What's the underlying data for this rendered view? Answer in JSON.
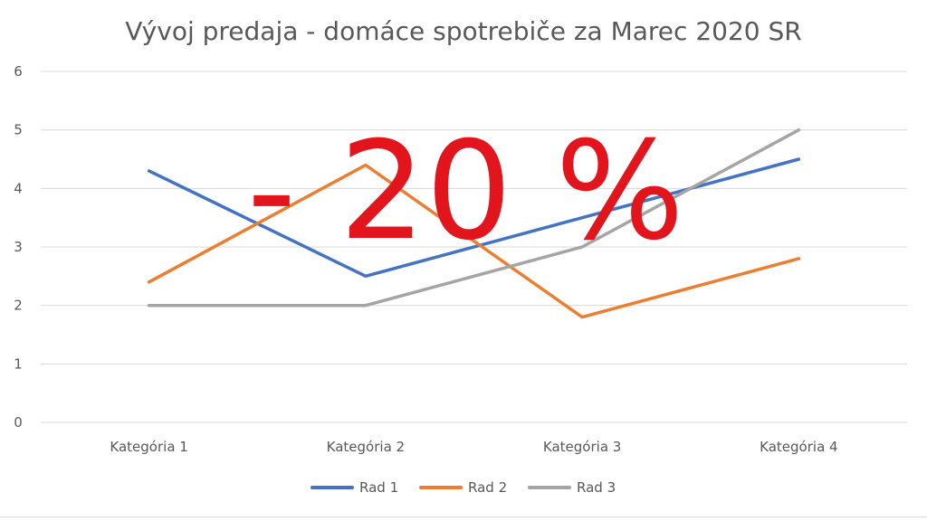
{
  "chart_data": {
    "type": "line",
    "title": "Vývoj predaja - domáce spotrebiče za Marec 2020 SR",
    "categories": [
      "Kategória 1",
      "Kategória 2",
      "Kategória 3",
      "Kategória 4"
    ],
    "series": [
      {
        "name": "Rad 1",
        "values": [
          4.3,
          2.5,
          3.5,
          4.5
        ],
        "color": "#4472C4"
      },
      {
        "name": "Rad 2",
        "values": [
          2.4,
          4.4,
          1.8,
          2.8
        ],
        "color": "#ED7D31"
      },
      {
        "name": "Rad 3",
        "values": [
          2,
          2,
          3,
          5
        ],
        "color": "#A5A5A5"
      }
    ],
    "xlabel": "",
    "ylabel": "",
    "ylim": [
      0,
      6
    ],
    "yticks": [
      0,
      1,
      2,
      3,
      4,
      5,
      6
    ],
    "grid": true,
    "legend_position": "bottom",
    "overlay_text": "- 20 %",
    "overlay_color": "#E3151C"
  }
}
